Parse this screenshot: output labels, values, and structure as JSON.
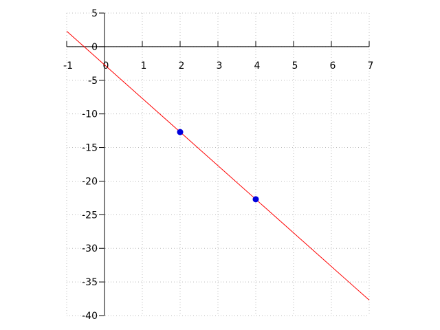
{
  "chart_data": {
    "type": "line",
    "line": {
      "x": [
        -1,
        7
      ],
      "values": [
        2.3,
        -37.7
      ],
      "color": "#ff0000"
    },
    "points": {
      "x": [
        2,
        4
      ],
      "values": [
        -12.7,
        -22.7
      ],
      "color": "#0000dd"
    },
    "xlim": [
      -1,
      7
    ],
    "xticks": [
      -1,
      0,
      1,
      2,
      3,
      4,
      5,
      6,
      7
    ],
    "ylim": [
      -40,
      5
    ],
    "yticks": [
      5,
      0,
      -5,
      -10,
      -15,
      -20,
      -25,
      -30,
      -35,
      -40
    ],
    "grid": true
  }
}
